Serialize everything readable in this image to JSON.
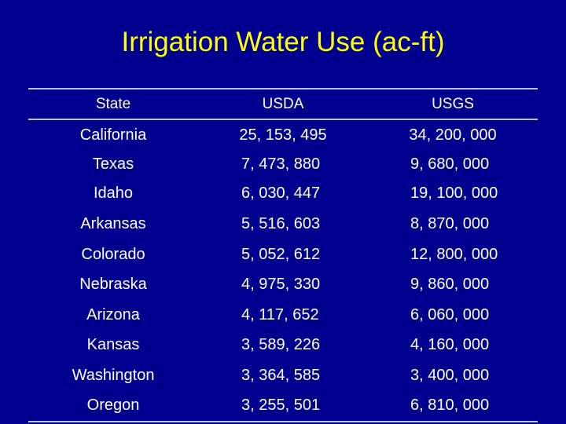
{
  "title": "Irrigation Water Use (ac-ft)",
  "table": {
    "headers": [
      "State",
      "USDA",
      "USGS"
    ],
    "rows": [
      {
        "state": "California",
        "usda": "25, 153, 495",
        "usgs": "34, 200, 000"
      },
      {
        "state": "Texas",
        "usda": "7, 473, 880",
        "usgs": "9, 680, 000"
      },
      {
        "state": "Idaho",
        "usda": "6, 030, 447",
        "usgs": "19, 100, 000"
      },
      {
        "state": "Arkansas",
        "usda": "5, 516, 603",
        "usgs": "8, 870, 000"
      },
      {
        "state": "Colorado",
        "usda": "5, 052, 612",
        "usgs": "12, 800, 000"
      },
      {
        "state": "Nebraska",
        "usda": "4, 975, 330",
        "usgs": "9, 860, 000"
      },
      {
        "state": "Arizona",
        "usda": "4, 117, 652",
        "usgs": "6, 060, 000"
      },
      {
        "state": "Kansas",
        "usda": "3, 589, 226",
        "usgs": "4, 160, 000"
      },
      {
        "state": "Washington",
        "usda": "3, 364, 585",
        "usgs": "3, 400, 000"
      },
      {
        "state": "Oregon",
        "usda": "3, 255, 501",
        "usgs": "6, 810, 000"
      }
    ]
  },
  "colors": {
    "background": "#00008f",
    "title": "#ffff00",
    "text": "#ffffff",
    "rule": "#b9c0ea"
  }
}
